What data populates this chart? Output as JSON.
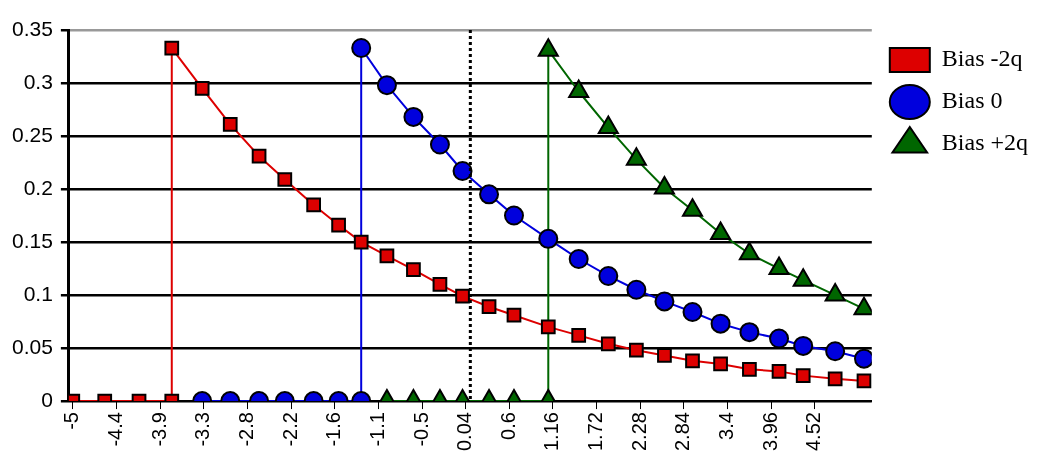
{
  "chart_data": {
    "type": "line",
    "grid": "y",
    "legend": "top right",
    "line_style": "solid",
    "xlim": [
      -5.05,
      5.25
    ],
    "xticks": [
      -5,
      {
        "value": -4.44,
        "label": "-4.4"
      },
      {
        "value": -3.88,
        "label": "-3.9"
      },
      {
        "value": -3.32,
        "label": "-3.3"
      },
      {
        "value": -2.76,
        "label": "-2.8"
      },
      -2.2,
      {
        "value": -1.64,
        "label": "-1.6"
      },
      {
        "value": -1.08,
        "label": "-1.1"
      },
      {
        "value": -0.52,
        "label": "-0.5"
      },
      0.04,
      0.6,
      1.16,
      1.72,
      2.28,
      2.84,
      {
        "value": 3.4,
        "label": "3.4"
      },
      3.96,
      4.52
    ],
    "ylim": [
      0,
      0.35
    ],
    "yticks": [
      0,
      0.05,
      0.1,
      0.15,
      0.2,
      0.25,
      0.3,
      0.35
    ],
    "ref_lines": [
      {
        "axis": "x",
        "value": 0.1,
        "color": "#000000",
        "line_style": "dotted"
      }
    ],
    "series": [
      {
        "name": "Bias -2q",
        "color": "#dd0000",
        "marker": "square",
        "x": [
          -5,
          -4.59,
          -4.15,
          -3.73,
          -3.73,
          -3.34,
          -2.98,
          -2.61,
          -2.28,
          -1.91,
          -1.59,
          -1.3,
          -0.97,
          -0.63,
          -0.29,
          0,
          0.34,
          0.66,
          1.1,
          1.49,
          1.87,
          2.23,
          2.59,
          2.95,
          3.31,
          3.68,
          4.06,
          4.37,
          4.78,
          5.15
        ],
        "values": [
          0,
          0,
          0,
          0,
          0.333,
          0.295,
          0.261,
          0.231,
          0.209,
          0.185,
          0.166,
          0.15,
          0.137,
          0.124,
          0.11,
          0.099,
          0.089,
          0.081,
          0.07,
          0.062,
          0.054,
          0.048,
          0.043,
          0.038,
          0.035,
          0.03,
          0.028,
          0.024,
          0.021,
          0.019
        ]
      },
      {
        "name": "Bias 0",
        "color": "#0000dd",
        "marker": "circle",
        "x": [
          -3.34,
          -2.98,
          -2.61,
          -2.28,
          -1.91,
          -1.59,
          -1.3,
          -1.3,
          -0.97,
          -0.63,
          -0.29,
          0,
          0.34,
          0.66,
          1.1,
          1.49,
          1.87,
          2.23,
          2.59,
          2.95,
          3.31,
          3.68,
          4.06,
          4.37,
          4.78,
          5.15
        ],
        "values": [
          0,
          0,
          0,
          0,
          0,
          0,
          0,
          0.333,
          0.298,
          0.268,
          0.242,
          0.217,
          0.195,
          0.175,
          0.153,
          0.134,
          0.118,
          0.105,
          0.094,
          0.084,
          0.073,
          0.065,
          0.059,
          0.052,
          0.047,
          0.04
        ]
      },
      {
        "name": "Bias +2q",
        "color": "#006600",
        "marker": "triangle",
        "x": [
          -0.97,
          -0.63,
          -0.29,
          0,
          0.34,
          0.66,
          1.1,
          1.1,
          1.49,
          1.87,
          2.23,
          2.59,
          2.95,
          3.31,
          3.68,
          4.06,
          4.37,
          4.78,
          5.15
        ],
        "values": [
          0,
          0,
          0,
          0,
          0,
          0,
          0,
          0.331,
          0.292,
          0.258,
          0.228,
          0.201,
          0.18,
          0.158,
          0.139,
          0.125,
          0.114,
          0.1,
          0.087
        ]
      }
    ]
  }
}
